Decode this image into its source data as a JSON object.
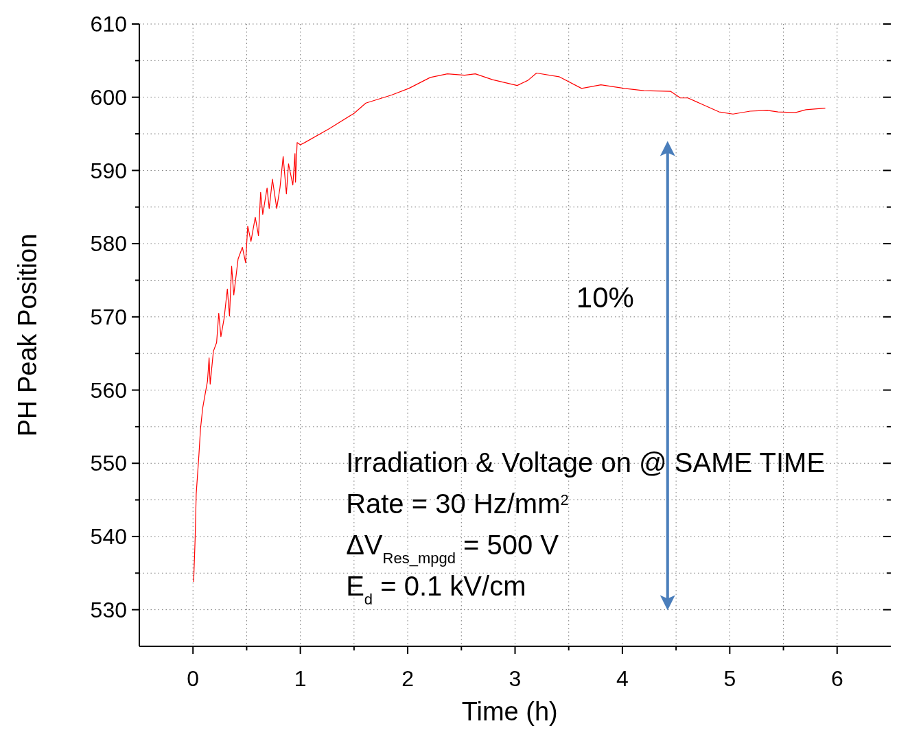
{
  "chart_data": {
    "type": "line",
    "xlabel": "Time (h)",
    "ylabel": "PH Peak Position",
    "xlim": [
      -0.5,
      6.5
    ],
    "ylim": [
      525,
      610
    ],
    "xticks": [
      0,
      {
        "value": 0.5,
        "label": null
      },
      1,
      {
        "value": 1.5,
        "label": null
      },
      2,
      {
        "value": 2.5,
        "label": null
      },
      3,
      {
        "value": 3.5,
        "label": null
      },
      4,
      {
        "value": 4.5,
        "label": null
      },
      5,
      {
        "value": 5.5,
        "label": null
      },
      6
    ],
    "yticks": [
      530,
      {
        "value": 535,
        "label": null
      },
      540,
      {
        "value": 545,
        "label": null
      },
      550,
      {
        "value": 555,
        "label": null
      },
      560,
      {
        "value": 565,
        "label": null
      },
      570,
      {
        "value": 575,
        "label": null
      },
      580,
      {
        "value": 585,
        "label": null
      },
      590,
      {
        "value": 595,
        "label": null
      },
      600,
      {
        "value": 605,
        "label": null
      },
      610
    ],
    "grid": true,
    "marker": "none",
    "line_style": "solid",
    "series": [
      {
        "color": "#ff0000",
        "x": [
          0.006,
          0.02,
          0.03,
          0.055,
          0.07,
          0.09,
          0.11,
          0.135,
          0.15,
          0.16,
          0.19,
          0.22,
          0.24,
          0.26,
          0.29,
          0.32,
          0.34,
          0.36,
          0.38,
          0.42,
          0.46,
          0.49,
          0.51,
          0.54,
          0.58,
          0.61,
          0.63,
          0.65,
          0.69,
          0.71,
          0.74,
          0.78,
          0.81,
          0.84,
          0.87,
          0.89,
          0.93,
          0.95,
          0.955,
          0.97,
          1.0,
          1.04,
          1.27,
          1.5,
          1.61,
          1.85,
          2.01,
          2.21,
          2.37,
          2.53,
          2.63,
          2.79,
          3.02,
          3.12,
          3.2,
          3.41,
          3.62,
          3.8,
          4.02,
          4.2,
          4.45,
          4.54,
          4.61,
          4.9,
          5.03,
          5.19,
          5.35,
          5.45,
          5.61,
          5.71,
          5.89
        ],
        "values": [
          533.8,
          539.7,
          545.8,
          551.1,
          554.7,
          557.5,
          559.2,
          561.2,
          564.4,
          560.8,
          565.3,
          566.5,
          570.5,
          567.3,
          569.8,
          573.8,
          570.1,
          576.9,
          573.0,
          577.9,
          579.5,
          577.4,
          582.4,
          580.3,
          583.6,
          581.1,
          587.0,
          584.0,
          587.6,
          584.8,
          588.8,
          584.8,
          587.6,
          591.9,
          586.8,
          590.9,
          588.0,
          592.3,
          588.4,
          593.8,
          593.5,
          593.8,
          595.7,
          597.8,
          599.2,
          600.3,
          601.2,
          602.7,
          603.2,
          603.0,
          603.2,
          602.4,
          601.6,
          602.3,
          603.3,
          602.8,
          601.2,
          601.7,
          601.2,
          600.9,
          600.8,
          599.9,
          599.9,
          598.0,
          597.7,
          598.1,
          598.2,
          598.0,
          597.9,
          598.3,
          598.5
        ]
      }
    ],
    "annotations": [
      "10%",
      "Irradiation & Voltage on @ SAME TIME",
      "Rate = 30 Hz/mm$^{2}$",
      "ΔV$_{Res_mpgd}$ = 500 V",
      "E$_{d}$ = 0.1 kV/cm"
    ]
  }
}
